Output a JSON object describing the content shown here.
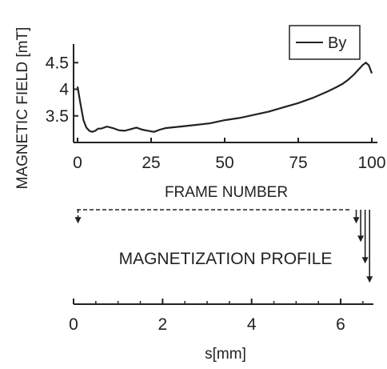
{
  "chart_data": [
    {
      "type": "line",
      "title": "",
      "xlabel": "FRAME NUMBER",
      "ylabel": "MAGNETIC FIELD [mT]",
      "xlim": [
        0,
        100
      ],
      "ylim": [
        3.0,
        4.85
      ],
      "xticks": [
        0,
        25,
        50,
        75,
        100
      ],
      "xtick_labels": [
        "0",
        "25",
        "50",
        "75",
        "100"
      ],
      "yticks": [
        3.5,
        4,
        4.5
      ],
      "ytick_labels": [
        "3.5",
        "4",
        "4.5"
      ],
      "legend": {
        "position": "top-right",
        "entries": [
          "By"
        ]
      },
      "series": [
        {
          "name": "By",
          "x": [
            0,
            1,
            2,
            3,
            4,
            5,
            6,
            7,
            8,
            10,
            12,
            14,
            16,
            18,
            20,
            22,
            24,
            26,
            28,
            30,
            35,
            40,
            45,
            50,
            55,
            60,
            65,
            70,
            75,
            80,
            85,
            88,
            90,
            92,
            94,
            96,
            97,
            98,
            99,
            100
          ],
          "y": [
            4.05,
            3.72,
            3.42,
            3.28,
            3.22,
            3.2,
            3.22,
            3.26,
            3.26,
            3.3,
            3.27,
            3.23,
            3.22,
            3.25,
            3.28,
            3.24,
            3.22,
            3.2,
            3.24,
            3.27,
            3.3,
            3.33,
            3.36,
            3.42,
            3.46,
            3.52,
            3.58,
            3.66,
            3.74,
            3.84,
            3.96,
            4.04,
            4.1,
            4.18,
            4.28,
            4.4,
            4.46,
            4.5,
            4.45,
            4.3
          ]
        }
      ]
    },
    {
      "type": "line",
      "title": "",
      "xlabel": "s[mm]",
      "ylabel": "",
      "xlim": [
        0,
        6.7
      ],
      "xticks": [
        0,
        2,
        4,
        6
      ],
      "xtick_labels": [
        "0",
        "2",
        "4",
        "6"
      ],
      "annotation": "MAGNETIZATION PROFILE",
      "arrows": [
        {
          "x": 0.1,
          "depth": 0.18
        },
        {
          "x": 6.35,
          "depth": 0.18
        },
        {
          "x": 6.45,
          "depth": 0.42
        },
        {
          "x": 6.55,
          "depth": 0.7
        },
        {
          "x": 6.65,
          "depth": 0.95
        }
      ]
    }
  ]
}
